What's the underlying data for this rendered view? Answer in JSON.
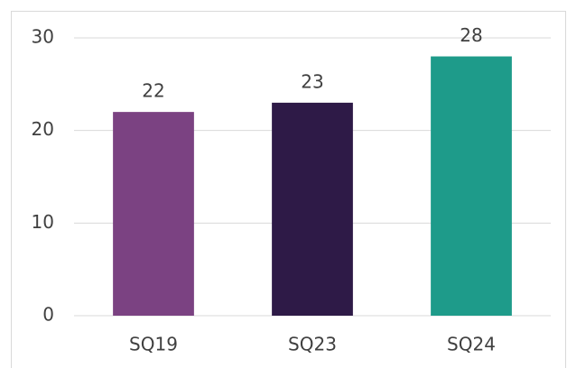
{
  "chart_data": {
    "type": "bar",
    "categories": [
      "SQ19",
      "SQ23",
      "SQ24"
    ],
    "values": [
      22,
      23,
      28
    ],
    "colors": [
      "#7b4282",
      "#2e1a47",
      "#1e9b8a"
    ],
    "ylim": [
      0,
      30
    ],
    "yticks": [
      0,
      10,
      20,
      30
    ],
    "grid": true
  }
}
